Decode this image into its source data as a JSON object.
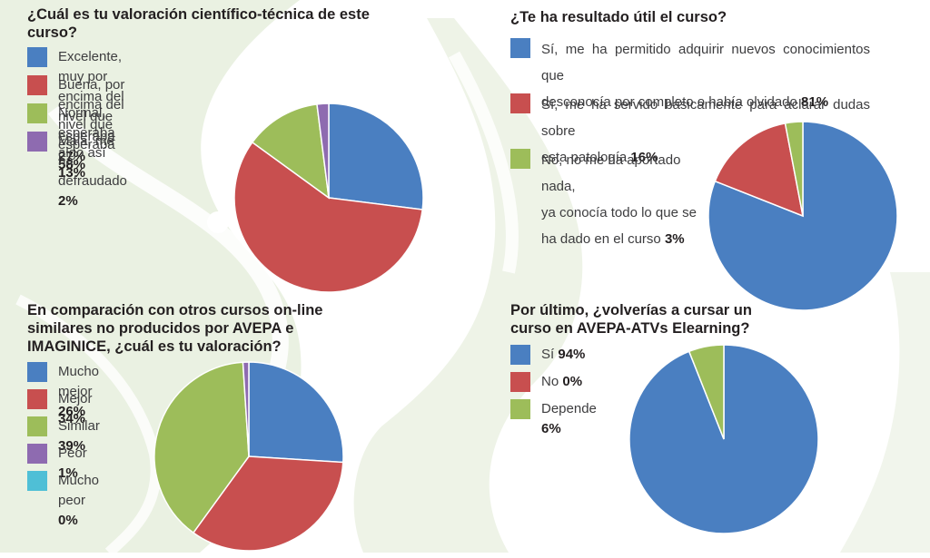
{
  "colors": {
    "blue": "#4a7fc1",
    "red": "#c84f4f",
    "green": "#9dbd5a",
    "purple": "#8e6bb0",
    "cyan": "#4fbfd6",
    "background_tint": "#eef3e7"
  },
  "questions": [
    {
      "question": "¿Cuál es tu valoración científico-técnica de este curso?",
      "options": [
        {
          "label": "Excelente, muy por encima del nivel que esperaba",
          "pct": "27%",
          "color": "#4a7fc1"
        },
        {
          "label": "Buena, por encima del nivel que esperaba",
          "pct": "58%",
          "color": "#c84f4f"
        },
        {
          "label": "Normal, esperaba algo así",
          "pct": "13%",
          "color": "#9dbd5a"
        },
        {
          "label": "Mala, me ha defraudado",
          "pct": "2%",
          "color": "#8e6bb0"
        }
      ]
    },
    {
      "question": "¿Te ha resultado útil el curso?",
      "options": [
        {
          "label1": "Sí, me ha permitido adquirir nuevos conocimientos que",
          "label2": "desconocía por completo o había olvidado",
          "pct": "81%",
          "color": "#4a7fc1"
        },
        {
          "label1": "Sí, me ha servido básicamente para aclarar dudas sobre",
          "label2": "esta patología",
          "pct": "16%",
          "color": "#c84f4f"
        },
        {
          "label1": "No, no me ha aportado nada,",
          "label2": "ya conocía todo lo que se",
          "label3": "ha dado en el curso",
          "pct": "3%",
          "color": "#9dbd5a"
        }
      ]
    },
    {
      "question": "En comparación con otros cursos on-line similares no producidos por AVEPA e IMAGINICE, ¿cuál es tu valoración?",
      "options": [
        {
          "label": "Mucho mejor",
          "pct": "26%",
          "color": "#4a7fc1"
        },
        {
          "label": "Mejor",
          "pct": "34%",
          "color": "#c84f4f"
        },
        {
          "label": "Similar",
          "pct": "39%",
          "color": "#9dbd5a"
        },
        {
          "label": "Peor",
          "pct": "1%",
          "color": "#8e6bb0"
        },
        {
          "label": "Mucho peor",
          "pct": "0%",
          "color": "#4fbfd6"
        }
      ]
    },
    {
      "question": "Por último, ¿volverías a cursar un curso en AVEPA-ATVs Elearning?",
      "options": [
        {
          "label": "Sí",
          "pct": "94%",
          "color": "#4a7fc1"
        },
        {
          "label": "No",
          "pct": "0%",
          "color": "#c84f4f"
        },
        {
          "label": "Depende",
          "pct": "6%",
          "color": "#9dbd5a"
        }
      ]
    }
  ],
  "chart_data": [
    {
      "type": "pie",
      "title": "¿Cuál es tu valoración científico-técnica de este curso?",
      "categories": [
        "Excelente, muy por encima del nivel que esperaba",
        "Buena, por encima del nivel que esperaba",
        "Normal, esperaba algo así",
        "Mala, me ha defraudado"
      ],
      "values": [
        27,
        58,
        13,
        2
      ],
      "colors": [
        "#4a7fc1",
        "#c84f4f",
        "#9dbd5a",
        "#8e6bb0"
      ]
    },
    {
      "type": "pie",
      "title": "¿Te ha resultado útil el curso?",
      "categories": [
        "Sí, me ha permitido adquirir nuevos conocimientos que desconocía por completo o había olvidado",
        "Sí, me ha servido básicamente para aclarar dudas sobre esta patología",
        "No, no me ha aportado nada, ya conocía todo lo que se ha dado en el curso"
      ],
      "values": [
        81,
        16,
        3
      ],
      "colors": [
        "#4a7fc1",
        "#c84f4f",
        "#9dbd5a"
      ]
    },
    {
      "type": "pie",
      "title": "En comparación con otros cursos on-line similares no producidos por AVEPA e IMAGINICE, ¿cuál es tu valoración?",
      "categories": [
        "Mucho mejor",
        "Mejor",
        "Similar",
        "Peor",
        "Mucho peor"
      ],
      "values": [
        26,
        34,
        39,
        1,
        0
      ],
      "colors": [
        "#4a7fc1",
        "#c84f4f",
        "#9dbd5a",
        "#8e6bb0",
        "#4fbfd6"
      ]
    },
    {
      "type": "pie",
      "title": "Por último, ¿volverías a cursar un curso en AVEPA-ATVs Elearning?",
      "categories": [
        "Sí",
        "No",
        "Depende"
      ],
      "values": [
        94,
        0,
        6
      ],
      "colors": [
        "#4a7fc1",
        "#c84f4f",
        "#9dbd5a"
      ]
    }
  ]
}
